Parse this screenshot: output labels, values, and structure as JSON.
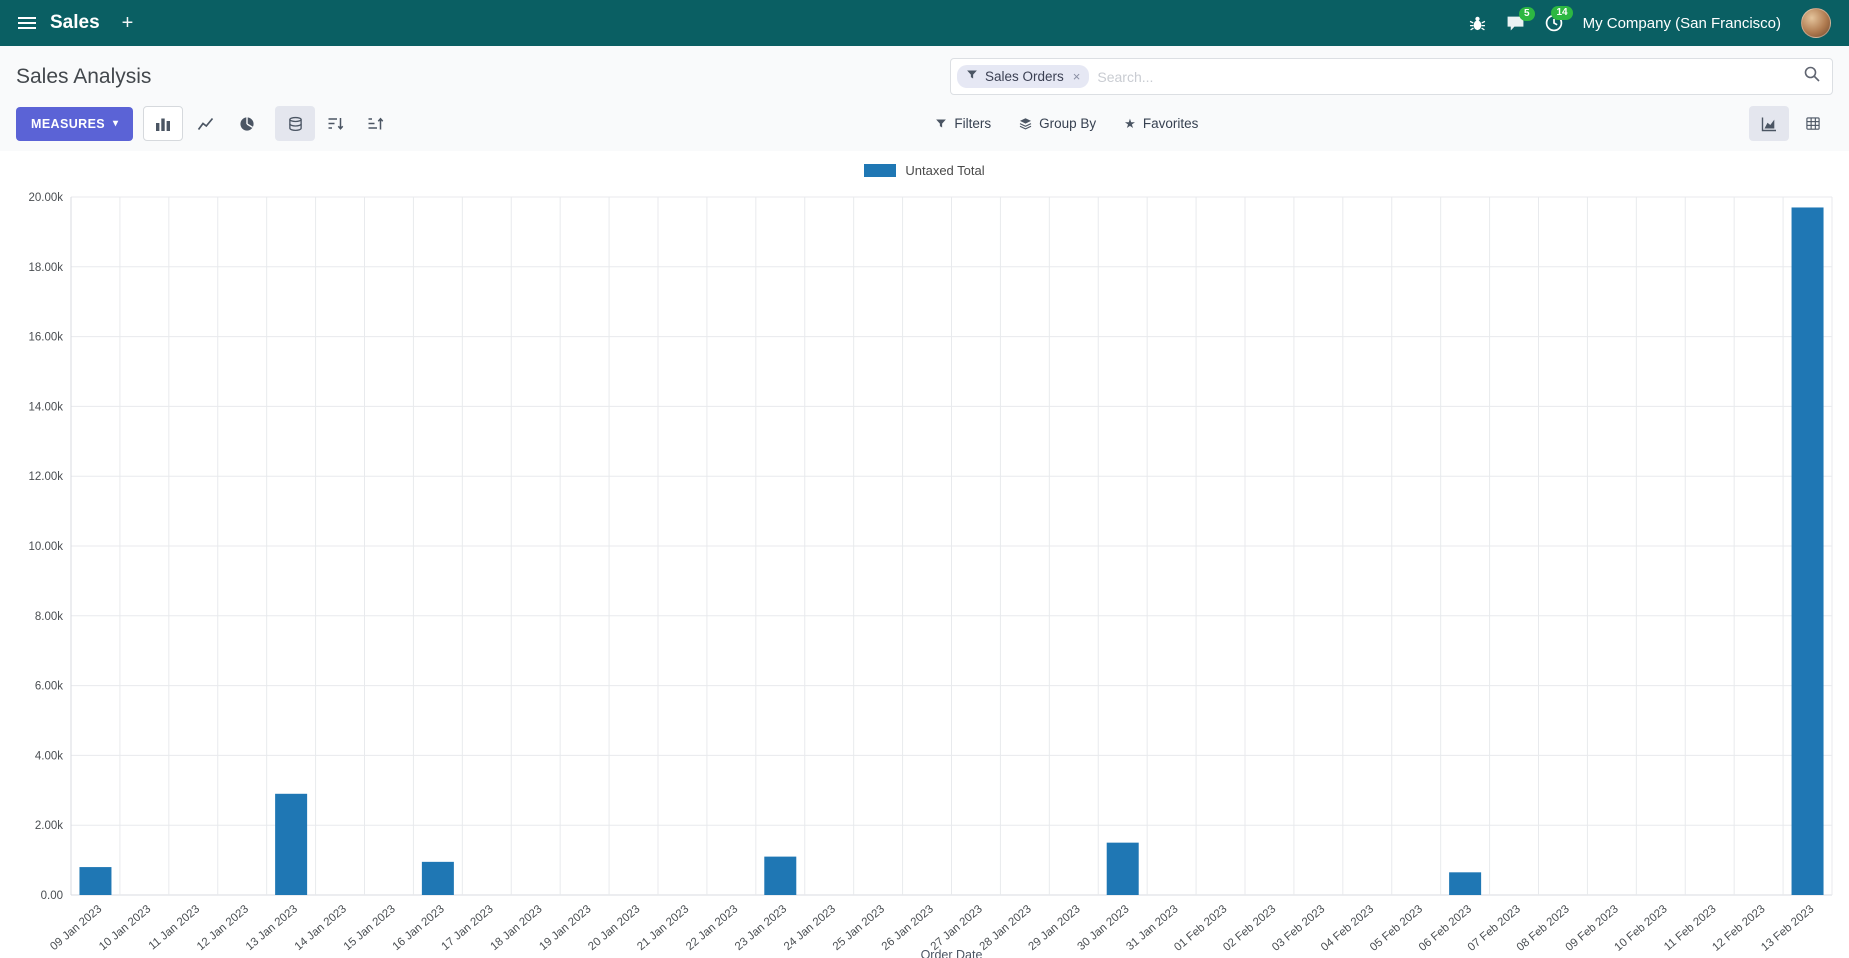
{
  "colors": {
    "nav_bg": "#0a5f63",
    "primary": "#5b63d6",
    "badge": "#2db742"
  },
  "nav": {
    "app_name": "Sales",
    "company": "My Company (San Francisco)",
    "messages_badge": "5",
    "activities_badge": "14"
  },
  "control_panel": {
    "title": "Sales Analysis",
    "measures_label": "MEASURES",
    "search": {
      "facet": "Sales Orders",
      "placeholder": "Search..."
    },
    "filters_label": "Filters",
    "group_by_label": "Group By",
    "favorites_label": "Favorites"
  },
  "chart_data": {
    "type": "bar",
    "title": "",
    "xlabel": "Order Date",
    "ylabel": "",
    "legend_position": "top",
    "grid": true,
    "ylim": [
      0,
      20000
    ],
    "ytick_step": 2000,
    "bar_color": "#1f77b4",
    "categories": [
      "09 Jan 2023",
      "10 Jan 2023",
      "11 Jan 2023",
      "12 Jan 2023",
      "13 Jan 2023",
      "14 Jan 2023",
      "15 Jan 2023",
      "16 Jan 2023",
      "17 Jan 2023",
      "18 Jan 2023",
      "19 Jan 2023",
      "20 Jan 2023",
      "21 Jan 2023",
      "22 Jan 2023",
      "23 Jan 2023",
      "24 Jan 2023",
      "25 Jan 2023",
      "26 Jan 2023",
      "27 Jan 2023",
      "28 Jan 2023",
      "29 Jan 2023",
      "30 Jan 2023",
      "31 Jan 2023",
      "01 Feb 2023",
      "02 Feb 2023",
      "03 Feb 2023",
      "04 Feb 2023",
      "05 Feb 2023",
      "06 Feb 2023",
      "07 Feb 2023",
      "08 Feb 2023",
      "09 Feb 2023",
      "10 Feb 2023",
      "11 Feb 2023",
      "12 Feb 2023",
      "13 Feb 2023"
    ],
    "series": [
      {
        "name": "Untaxed Total",
        "values": [
          800,
          0,
          0,
          0,
          2900,
          0,
          0,
          950,
          0,
          0,
          0,
          0,
          0,
          0,
          1100,
          0,
          0,
          0,
          0,
          0,
          0,
          1500,
          0,
          0,
          0,
          0,
          0,
          0,
          650,
          0,
          0,
          0,
          0,
          0,
          0,
          19700
        ]
      }
    ]
  }
}
